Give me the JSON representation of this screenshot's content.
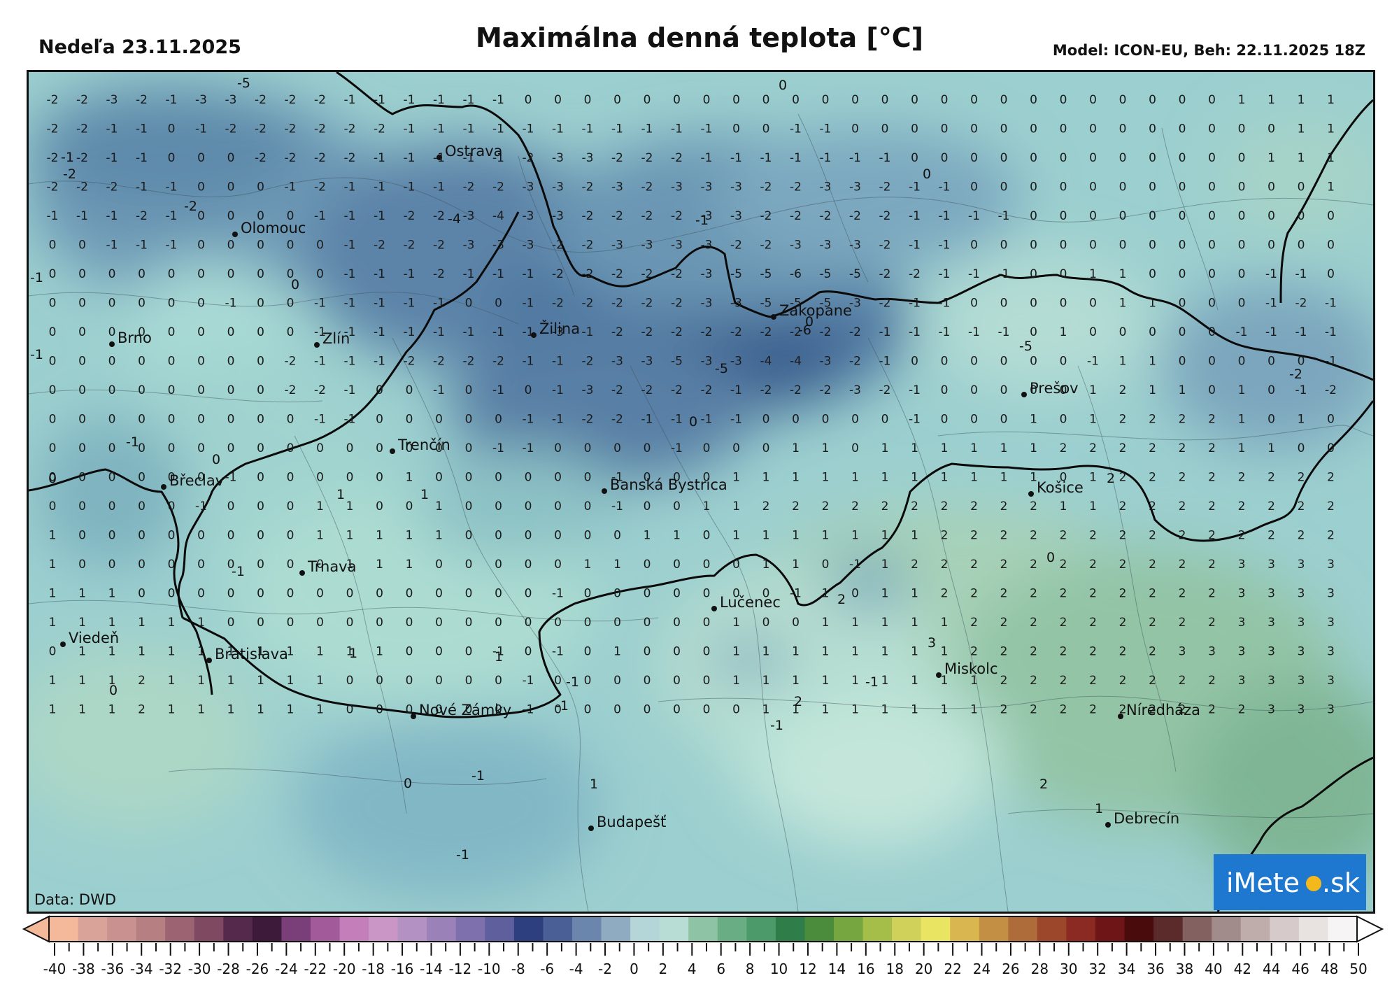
{
  "header": {
    "date": "Nedeľa 23.11.2025",
    "title": "Maximálna denná teplota [°C]",
    "model_info": "Model: ICON-EU, Beh: 22.11.2025 18Z"
  },
  "map": {
    "data_source": "Data: DWD",
    "cities": [
      {
        "name": "Ostrava"
      },
      {
        "name": "Olomouc"
      },
      {
        "name": "Brno"
      },
      {
        "name": "Zlín"
      },
      {
        "name": "Žilina"
      },
      {
        "name": "Zakopane"
      },
      {
        "name": "Prešov"
      },
      {
        "name": "Trenčín"
      },
      {
        "name": "Břeclav"
      },
      {
        "name": "Banská Bystrica"
      },
      {
        "name": "Košice"
      },
      {
        "name": "Trnava"
      },
      {
        "name": "Lučenec"
      },
      {
        "name": "Viedeň"
      },
      {
        "name": "Bratislava"
      },
      {
        "name": "Miskolc"
      },
      {
        "name": "Nové Zámky"
      },
      {
        "name": "Níredháza"
      },
      {
        "name": "Budapešť"
      },
      {
        "name": "Debrecín"
      }
    ],
    "grid_values": [
      [
        -2,
        -2,
        -3,
        -2,
        -1,
        -3,
        -3,
        -2,
        -2,
        -2,
        -1,
        -1,
        -1,
        -1,
        -1,
        -1,
        0,
        0,
        0,
        0,
        0,
        0,
        0,
        0,
        0,
        0,
        0,
        0,
        0,
        0,
        0,
        0,
        0,
        0,
        0,
        0,
        0,
        0,
        0,
        0,
        1,
        1,
        1,
        1
      ],
      [
        -2,
        -2,
        -1,
        -1,
        0,
        -1,
        -2,
        -2,
        -2,
        -2,
        -2,
        -2,
        -1,
        -1,
        -1,
        -1,
        -1,
        -1,
        -1,
        -1,
        -1,
        -1,
        -1,
        0,
        0,
        -1,
        -1,
        0,
        0,
        0,
        0,
        0,
        0,
        0,
        0,
        0,
        0,
        0,
        0,
        0,
        0,
        0,
        1,
        1
      ],
      [
        -2,
        -2,
        -1,
        -1,
        0,
        0,
        0,
        -2,
        -2,
        -2,
        -2,
        -1,
        -1,
        -1,
        -1,
        -1,
        -2,
        -3,
        -3,
        -2,
        -2,
        -2,
        -1,
        -1,
        -1,
        -1,
        -1,
        -1,
        -1,
        0,
        0,
        0,
        0,
        0,
        0,
        0,
        0,
        0,
        0,
        0,
        0,
        1,
        1,
        1
      ],
      [
        -2,
        -2,
        -2,
        -1,
        -1,
        0,
        0,
        0,
        -1,
        -2,
        -1,
        -1,
        -1,
        -1,
        -2,
        -2,
        -3,
        -3,
        -2,
        -3,
        -2,
        -3,
        -3,
        -3,
        -2,
        -2,
        -3,
        -3,
        -2,
        -1,
        -1,
        0,
        0,
        0,
        0,
        0,
        0,
        0,
        0,
        0,
        0,
        0,
        0,
        1
      ],
      [
        -1,
        -1,
        -1,
        -2,
        -1,
        0,
        0,
        0,
        0,
        -1,
        -1,
        -1,
        -2,
        -2,
        -3,
        -4,
        -3,
        -3,
        -2,
        -2,
        -2,
        -2,
        -3,
        -3,
        -2,
        -2,
        -2,
        -2,
        -2,
        -1,
        -1,
        -1,
        -1,
        0,
        0,
        0,
        0,
        0,
        0,
        0,
        0,
        0,
        0,
        0
      ],
      [
        0,
        0,
        -1,
        -1,
        -1,
        0,
        0,
        0,
        0,
        0,
        -1,
        -2,
        -2,
        -2,
        -3,
        -3,
        -3,
        -2,
        -2,
        -3,
        -3,
        -3,
        -3,
        -2,
        -2,
        -3,
        -3,
        -3,
        -2,
        -1,
        -1,
        0,
        0,
        0,
        0,
        0,
        0,
        0,
        0,
        0,
        0,
        0,
        0,
        0
      ],
      [
        0,
        0,
        0,
        0,
        0,
        0,
        0,
        0,
        0,
        0,
        -1,
        -1,
        -1,
        -2,
        -1,
        -1,
        -1,
        -2,
        -2,
        -2,
        -2,
        -2,
        -3,
        -5,
        -5,
        -6,
        -5,
        -5,
        -2,
        -2,
        -1,
        -1,
        -1,
        0,
        0,
        1,
        1,
        0,
        0,
        0,
        0,
        -1,
        -1,
        0
      ],
      [
        0,
        0,
        0,
        0,
        0,
        0,
        -1,
        0,
        0,
        -1,
        -1,
        -1,
        -1,
        -1,
        0,
        0,
        -1,
        -2,
        -2,
        -2,
        -2,
        -2,
        -3,
        -3,
        -5,
        -5,
        -5,
        -3,
        -2,
        -1,
        -1,
        0,
        0,
        0,
        0,
        0,
        1,
        1,
        0,
        0,
        0,
        -1,
        -2,
        -1
      ],
      [
        0,
        0,
        0,
        0,
        0,
        0,
        0,
        0,
        0,
        -1,
        -1,
        -1,
        -1,
        -1,
        -1,
        -1,
        -1,
        -3,
        -1,
        -2,
        -2,
        -2,
        -2,
        -2,
        -2,
        -2,
        -2,
        -2,
        -1,
        -1,
        -1,
        -1,
        -1,
        0,
        1,
        0,
        0,
        0,
        0,
        0,
        -1,
        -1,
        -1,
        -1
      ],
      [
        0,
        0,
        0,
        0,
        0,
        0,
        0,
        0,
        -2,
        -1,
        -1,
        -1,
        -2,
        -2,
        -2,
        -2,
        -1,
        -1,
        -2,
        -3,
        -3,
        -5,
        -3,
        -3,
        -4,
        -4,
        -3,
        -2,
        -1,
        0,
        0,
        0,
        0,
        0,
        0,
        -1,
        1,
        1,
        0,
        0,
        0,
        0,
        0,
        -1
      ],
      [
        0,
        0,
        0,
        0,
        0,
        0,
        0,
        0,
        -2,
        -2,
        -1,
        0,
        0,
        -1,
        0,
        -1,
        0,
        -1,
        -3,
        -2,
        -2,
        -2,
        -2,
        -1,
        -2,
        -2,
        -2,
        -3,
        -2,
        -1,
        0,
        0,
        0,
        0,
        0,
        1,
        2,
        1,
        1,
        0,
        1,
        0,
        -1,
        -2
      ],
      [
        0,
        0,
        0,
        0,
        0,
        0,
        0,
        0,
        0,
        -1,
        -1,
        0,
        0,
        0,
        0,
        0,
        -1,
        -1,
        -2,
        -2,
        -1,
        -1,
        -1,
        -1,
        0,
        0,
        0,
        0,
        0,
        -1,
        0,
        0,
        0,
        1,
        0,
        1,
        2,
        2,
        2,
        2,
        1,
        0,
        1,
        0
      ],
      [
        0,
        0,
        0,
        0,
        0,
        0,
        0,
        0,
        0,
        0,
        0,
        0,
        0,
        0,
        0,
        -1,
        -1,
        0,
        0,
        0,
        0,
        -1,
        0,
        0,
        0,
        1,
        1,
        0,
        1,
        1,
        1,
        1,
        1,
        1,
        2,
        2,
        2,
        2,
        2,
        2,
        1,
        1,
        0,
        0
      ],
      [
        0,
        0,
        0,
        0,
        0,
        0,
        -1,
        0,
        0,
        0,
        0,
        0,
        1,
        0,
        0,
        0,
        0,
        0,
        0,
        -1,
        0,
        0,
        0,
        1,
        1,
        1,
        1,
        1,
        1,
        1,
        1,
        1,
        1,
        1,
        0,
        1,
        2,
        2,
        2,
        2,
        2,
        2,
        2,
        2
      ],
      [
        0,
        0,
        0,
        0,
        0,
        -1,
        0,
        0,
        0,
        1,
        1,
        0,
        0,
        1,
        0,
        0,
        0,
        0,
        0,
        -1,
        0,
        0,
        1,
        1,
        2,
        2,
        2,
        2,
        2,
        2,
        2,
        2,
        2,
        2,
        1,
        1,
        2,
        2,
        2,
        2,
        2,
        2,
        2,
        2
      ],
      [
        1,
        0,
        0,
        0,
        0,
        0,
        0,
        0,
        0,
        1,
        1,
        1,
        1,
        1,
        0,
        0,
        0,
        0,
        0,
        0,
        1,
        1,
        0,
        1,
        1,
        1,
        1,
        1,
        1,
        1,
        2,
        2,
        2,
        2,
        2,
        2,
        2,
        2,
        2,
        2,
        2,
        2,
        2,
        2
      ],
      [
        1,
        0,
        0,
        0,
        0,
        0,
        0,
        0,
        0,
        0,
        1,
        1,
        1,
        0,
        0,
        0,
        0,
        0,
        1,
        1,
        0,
        0,
        0,
        0,
        1,
        1,
        0,
        -1,
        1,
        2,
        2,
        2,
        2,
        2,
        2,
        2,
        2,
        2,
        2,
        2,
        3,
        3,
        3,
        3
      ],
      [
        1,
        1,
        1,
        0,
        0,
        0,
        0,
        0,
        0,
        0,
        0,
        0,
        0,
        0,
        0,
        0,
        0,
        -1,
        0,
        0,
        0,
        0,
        0,
        0,
        0,
        -1,
        1,
        0,
        1,
        1,
        2,
        2,
        2,
        2,
        2,
        2,
        2,
        2,
        2,
        2,
        3,
        3,
        3,
        3
      ],
      [
        1,
        1,
        1,
        1,
        1,
        1,
        0,
        0,
        0,
        0,
        0,
        0,
        0,
        0,
        0,
        0,
        0,
        0,
        0,
        0,
        0,
        0,
        0,
        1,
        0,
        0,
        1,
        1,
        1,
        1,
        1,
        2,
        2,
        2,
        2,
        2,
        2,
        2,
        2,
        2,
        3,
        3,
        3,
        3
      ],
      [
        0,
        1,
        1,
        1,
        1,
        1,
        1,
        1,
        1,
        1,
        1,
        1,
        0,
        0,
        0,
        -1,
        0,
        -1,
        0,
        1,
        0,
        0,
        0,
        1,
        1,
        1,
        1,
        1,
        1,
        1,
        1,
        2,
        2,
        2,
        2,
        2,
        2,
        2,
        3,
        3,
        3,
        3,
        3,
        3
      ],
      [
        1,
        1,
        1,
        2,
        1,
        1,
        1,
        1,
        1,
        1,
        0,
        0,
        0,
        0,
        0,
        0,
        -1,
        0,
        0,
        0,
        0,
        0,
        0,
        1,
        1,
        1,
        1,
        1,
        1,
        1,
        1,
        1,
        2,
        2,
        2,
        2,
        2,
        2,
        2,
        2,
        3,
        3,
        3,
        3
      ],
      [
        1,
        1,
        1,
        2,
        1,
        1,
        1,
        1,
        1,
        1,
        0,
        0,
        0,
        0,
        0,
        0,
        -1,
        0,
        0,
        0,
        0,
        0,
        0,
        0,
        1,
        1,
        1,
        1,
        1,
        1,
        1,
        1,
        2,
        2,
        2,
        2,
        2,
        2,
        2,
        2,
        2,
        3,
        3,
        3
      ]
    ],
    "contour_labels": [
      "-5",
      "0",
      "-2",
      "-1",
      "0",
      "-2",
      "-4",
      "-1",
      "0",
      "-1",
      "0",
      "-6",
      "-5",
      "-2",
      "-1",
      "-5",
      "0",
      "0",
      "-1",
      "0",
      "2",
      "1",
      "1",
      "-1",
      "0",
      "1",
      "1",
      "2",
      "3",
      "-1",
      "0",
      "-1",
      "2",
      "-1",
      "-1",
      "-1",
      "1",
      "2",
      "0",
      "1",
      "-1"
    ]
  },
  "logo": {
    "text_left": "iMete",
    "text_right": ".sk"
  },
  "scale": {
    "labels": [
      "-40",
      "-38",
      "-36",
      "-34",
      "-32",
      "-30",
      "-28",
      "-26",
      "-24",
      "-22",
      "-20",
      "-18",
      "-16",
      "-14",
      "-12",
      "-10",
      "-8",
      "-6",
      "-4",
      "-2",
      "0",
      "2",
      "4",
      "6",
      "8",
      "10",
      "12",
      "14",
      "16",
      "18",
      "20",
      "22",
      "24",
      "26",
      "28",
      "30",
      "32",
      "34",
      "36",
      "38",
      "40",
      "42",
      "44",
      "46",
      "48",
      "50"
    ],
    "colors": [
      "#f3b99a",
      "#d9a39a",
      "#c9918f",
      "#b67f82",
      "#9c6372",
      "#7e4961",
      "#55294b",
      "#3d1a3a",
      "#7a3f78",
      "#a25a9a",
      "#c47fba",
      "#c996c6",
      "#b391c2",
      "#9a81b7",
      "#7d70ad",
      "#5f5f9e",
      "#2d3f7e",
      "#4a5f95",
      "#6a86ad",
      "#8fabc2",
      "#b4d6d8",
      "#b7ddd5",
      "#8ec3a5",
      "#69ad85",
      "#4c9a69",
      "#2f7d48",
      "#4a8b3c",
      "#75a640",
      "#a5be4a",
      "#cfd15a",
      "#e9e462",
      "#d9b64f",
      "#c28f44",
      "#ad6c39",
      "#9c472b",
      "#8b2a22",
      "#6e1518",
      "#4a0b0d",
      "#5b2a2a",
      "#826160",
      "#a28c8b",
      "#bfadac",
      "#d6cbca",
      "#e8e2e1",
      "#f6f4f4"
    ]
  }
}
